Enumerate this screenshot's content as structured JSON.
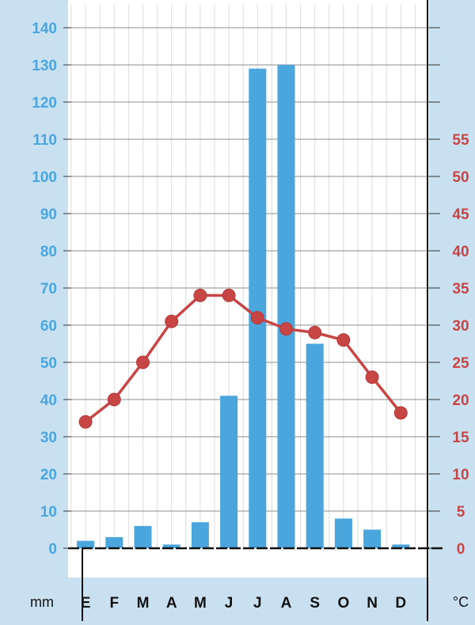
{
  "chart_data": {
    "type": "bar",
    "categories": [
      "E",
      "F",
      "M",
      "A",
      "M",
      "J",
      "J",
      "A",
      "S",
      "O",
      "N",
      "D"
    ],
    "series": [
      {
        "type": "bar",
        "axis": "left",
        "color": "#4aa6dd",
        "values": [
          2,
          3,
          6,
          1,
          7,
          41,
          129,
          130,
          55,
          8,
          5,
          1
        ]
      },
      {
        "type": "line",
        "axis": "right",
        "color": "#c84545",
        "values": [
          17,
          20,
          25,
          30.5,
          34,
          34,
          31,
          29.5,
          29,
          28,
          23,
          18.2
        ]
      }
    ],
    "xlabel": "",
    "ylabel_left": "mm",
    "ylabel_right": "°C",
    "ylim_left": [
      0,
      140
    ],
    "yticks_left": [
      0,
      10,
      20,
      30,
      40,
      50,
      60,
      70,
      80,
      90,
      100,
      110,
      120,
      130,
      140
    ],
    "ylim_right": [
      0,
      70
    ],
    "yticks_right": [
      0,
      5,
      10,
      15,
      20,
      25,
      30,
      35,
      40,
      45,
      50,
      55
    ],
    "grid": true,
    "legend": "none"
  }
}
